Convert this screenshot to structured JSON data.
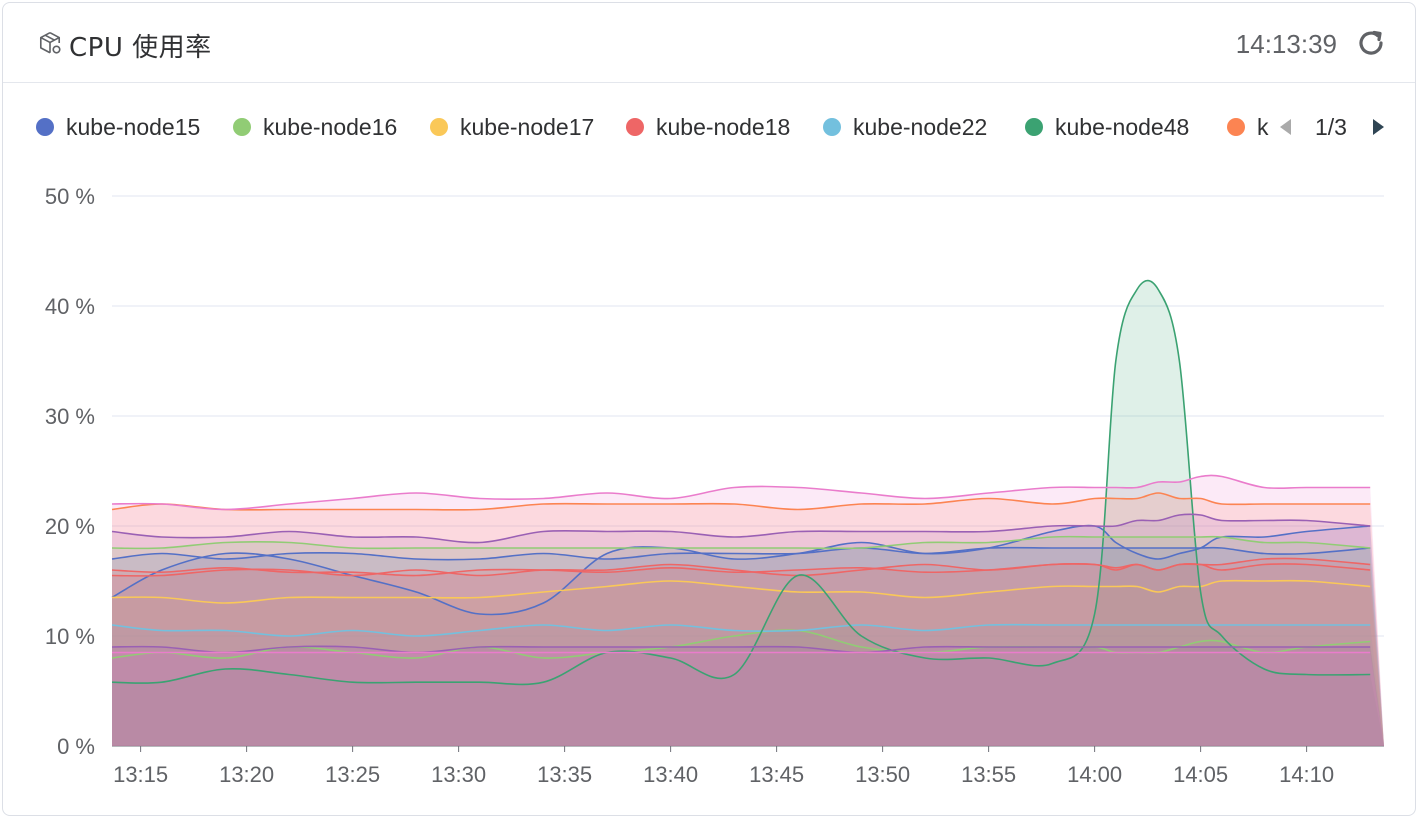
{
  "header": {
    "title": "CPU 使用率",
    "timestamp": "14:13:39",
    "title_icon": "cube-box-icon",
    "refresh_icon": "refresh-icon"
  },
  "legend": {
    "page_indicator": "1/3",
    "items": [
      {
        "name": "kube-node15",
        "color": "#5470c6"
      },
      {
        "name": "kube-node16",
        "color": "#91cc75"
      },
      {
        "name": "kube-node17",
        "color": "#fac858"
      },
      {
        "name": "kube-node18",
        "color": "#ee6666"
      },
      {
        "name": "kube-node22",
        "color": "#73c0de"
      },
      {
        "name": "kube-node48",
        "color": "#3ba272"
      },
      {
        "name": "k",
        "color": "#fc8452"
      }
    ]
  },
  "chart_data": {
    "type": "area",
    "title": "CPU 使用率",
    "xlabel": "",
    "ylabel": "",
    "y_unit": "%",
    "ylim": [
      0,
      50
    ],
    "yticks": [
      "0 %",
      "10 %",
      "20 %",
      "30 %",
      "40 %",
      "50 %"
    ],
    "xticks": [
      "13:15",
      "13:20",
      "13:25",
      "13:30",
      "13:35",
      "13:40",
      "13:45",
      "13:50",
      "13:55",
      "14:00",
      "14:05",
      "14:10"
    ],
    "xlim": [
      "13:13:39",
      "14:13:39"
    ],
    "grid": true,
    "legend_position": "top",
    "x": [
      "13:13",
      "13:16",
      "13:19",
      "13:22",
      "13:25",
      "13:28",
      "13:31",
      "13:34",
      "13:37",
      "13:40",
      "13:43",
      "13:46",
      "13:49",
      "13:52",
      "13:55",
      "13:58",
      "14:00",
      "14:01",
      "14:02",
      "14:03",
      "14:04",
      "14:05",
      "14:06",
      "14:08",
      "14:10",
      "14:13"
    ],
    "series": [
      {
        "name": "kube-node15",
        "color": "#5470c6",
        "values": [
          13.5,
          16.0,
          17.5,
          17.0,
          15.5,
          14.0,
          12.0,
          13.0,
          17.5,
          18.0,
          17.0,
          17.5,
          18.5,
          17.5,
          18.0,
          19.5,
          20.0,
          18.5,
          17.5,
          17.0,
          17.5,
          18.0,
          19.0,
          19.0,
          19.5,
          20.0
        ]
      },
      {
        "name": "kube-node16",
        "color": "#91cc75",
        "values": [
          8.0,
          8.5,
          8.0,
          9.0,
          8.5,
          8.0,
          9.0,
          8.0,
          8.5,
          9.0,
          10.0,
          10.5,
          9.0,
          8.5,
          9.0,
          9.0,
          9.0,
          8.5,
          8.5,
          8.5,
          9.0,
          9.5,
          9.5,
          8.5,
          9.0,
          9.5
        ]
      },
      {
        "name": "kube-node17",
        "color": "#fac858",
        "values": [
          13.5,
          13.5,
          13.0,
          13.5,
          13.5,
          13.5,
          13.5,
          14.0,
          14.5,
          15.0,
          14.5,
          14.0,
          14.0,
          13.5,
          14.0,
          14.5,
          14.5,
          14.5,
          14.5,
          14.0,
          14.5,
          14.5,
          15.0,
          15.0,
          15.0,
          14.5
        ]
      },
      {
        "name": "kube-node18",
        "color": "#ee6666",
        "values": [
          15.5,
          15.5,
          16.0,
          16.0,
          15.5,
          16.0,
          15.5,
          16.0,
          16.0,
          16.5,
          16.0,
          15.5,
          16.0,
          16.5,
          16.0,
          16.5,
          16.5,
          16.0,
          16.5,
          16.0,
          16.5,
          16.5,
          16.0,
          16.5,
          16.5,
          16.0
        ]
      },
      {
        "name": "kube-node22",
        "color": "#73c0de",
        "values": [
          11.0,
          10.5,
          10.5,
          10.0,
          10.5,
          10.0,
          10.5,
          11.0,
          10.5,
          11.0,
          10.5,
          10.5,
          11.0,
          10.5,
          11.0,
          11.0,
          11.0,
          11.0,
          11.0,
          11.0,
          11.0,
          11.0,
          11.0,
          11.0,
          11.0,
          11.0
        ]
      },
      {
        "name": "kube-node48",
        "color": "#3ba272",
        "values": [
          5.8,
          5.8,
          7.0,
          6.5,
          5.8,
          5.8,
          5.8,
          5.8,
          8.5,
          8.0,
          6.5,
          15.5,
          10.0,
          8.0,
          8.0,
          7.5,
          12.0,
          35.0,
          41.5,
          41.5,
          35.0,
          14.0,
          10.0,
          7.0,
          6.5,
          6.5
        ]
      },
      {
        "name": "k",
        "color": "#fc8452",
        "values": [
          21.5,
          22.0,
          21.5,
          21.5,
          21.5,
          21.5,
          21.5,
          22.0,
          22.0,
          22.0,
          22.0,
          21.5,
          22.0,
          22.0,
          22.5,
          22.0,
          22.5,
          22.5,
          22.5,
          23.0,
          22.5,
          22.5,
          22.0,
          22.0,
          22.0,
          22.0
        ]
      },
      {
        "name": "",
        "color": "#9a60b4",
        "values": [
          19.5,
          19.0,
          19.0,
          19.5,
          19.0,
          19.0,
          18.5,
          19.5,
          19.5,
          19.5,
          19.0,
          19.5,
          19.5,
          19.5,
          19.5,
          20.0,
          20.0,
          20.0,
          20.5,
          20.5,
          21.0,
          21.0,
          20.5,
          20.5,
          20.5,
          20.0
        ]
      },
      {
        "name": "",
        "color": "#ea7ccc",
        "values": [
          22.0,
          22.0,
          21.5,
          22.0,
          22.5,
          23.0,
          22.5,
          22.5,
          23.0,
          22.5,
          23.5,
          23.5,
          23.0,
          22.5,
          23.0,
          23.5,
          23.5,
          23.5,
          23.5,
          24.0,
          24.0,
          24.5,
          24.5,
          23.5,
          23.5,
          23.5
        ]
      },
      {
        "name": "",
        "color": "#5470c6",
        "values": [
          17.0,
          17.5,
          17.0,
          17.5,
          17.5,
          17.0,
          17.0,
          17.5,
          17.0,
          17.5,
          17.5,
          17.5,
          18.0,
          17.5,
          18.0,
          18.0,
          18.0,
          18.0,
          18.0,
          18.0,
          18.0,
          18.0,
          18.0,
          17.5,
          17.5,
          18.0
        ]
      },
      {
        "name": "",
        "color": "#91cc75",
        "values": [
          18.0,
          18.0,
          18.5,
          18.5,
          18.0,
          18.0,
          18.0,
          18.0,
          18.0,
          18.0,
          18.0,
          18.0,
          18.0,
          18.5,
          18.5,
          19.0,
          19.0,
          19.0,
          19.0,
          19.0,
          19.0,
          19.0,
          19.0,
          18.5,
          18.5,
          18.0
        ]
      },
      {
        "name": "",
        "color": "#ee6666",
        "values": [
          16.0,
          15.8,
          16.2,
          15.8,
          15.8,
          15.5,
          16.0,
          16.0,
          15.8,
          16.2,
          15.8,
          16.0,
          16.2,
          15.8,
          16.0,
          16.5,
          16.5,
          16.2,
          16.5,
          16.0,
          16.5,
          16.5,
          16.5,
          17.0,
          17.0,
          16.5
        ]
      },
      {
        "name": "",
        "color": "#9a60b4",
        "values": [
          9.0,
          9.0,
          8.5,
          9.0,
          9.0,
          8.5,
          9.0,
          9.0,
          9.0,
          9.0,
          9.0,
          9.0,
          8.5,
          9.0,
          9.0,
          9.0,
          9.0,
          9.0,
          9.0,
          9.0,
          9.0,
          9.0,
          9.0,
          9.0,
          9.0,
          9.0
        ]
      },
      {
        "name": "",
        "color": "#ea7ccc",
        "values": [
          8.5,
          8.5,
          8.5,
          8.5,
          8.5,
          8.5,
          8.5,
          8.5,
          8.5,
          8.5,
          8.5,
          8.5,
          8.5,
          8.5,
          8.5,
          8.5,
          8.5,
          8.5,
          8.5,
          8.5,
          8.5,
          8.5,
          8.5,
          8.5,
          8.5,
          8.5
        ]
      }
    ]
  }
}
